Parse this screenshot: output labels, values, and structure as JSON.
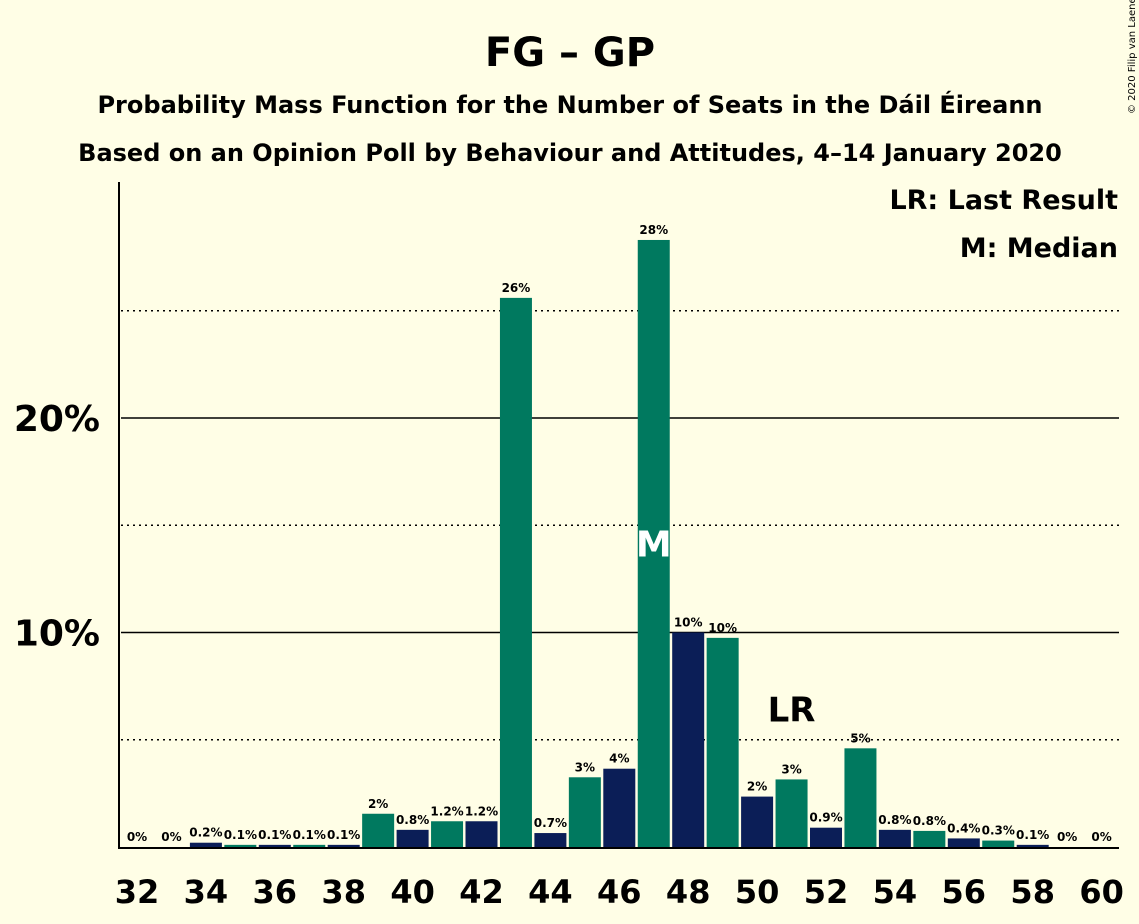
{
  "header": {
    "title": "FG – GP",
    "subtitle1": "Probability Mass Function for the Number of Seats in the Dáil Éireann",
    "subtitle2": "Based on an Opinion Poll by Behaviour and Attitudes, 4–14 January 2020",
    "copyright": "© 2020 Filip van Laenen"
  },
  "legend": {
    "last_result": "LR: Last Result",
    "median": "M: Median"
  },
  "colors": {
    "background": "#FFFEE6",
    "bar_primary": "#00795F",
    "bar_secondary": "#0B1E57",
    "axis": "#000000"
  },
  "chart_data": {
    "type": "bar",
    "x": [
      32,
      33,
      34,
      35,
      36,
      37,
      38,
      39,
      40,
      41,
      42,
      43,
      44,
      45,
      46,
      47,
      48,
      49,
      50,
      51,
      52,
      53,
      54,
      55,
      56,
      57,
      58,
      59,
      60
    ],
    "values": [
      0,
      0,
      0.2,
      0.1,
      0.1,
      0.1,
      0.1,
      1.55,
      0.8,
      1.2,
      1.2,
      25.6,
      0.65,
      3.25,
      3.65,
      28.3,
      10.0,
      9.75,
      2.35,
      3.15,
      0.9,
      4.6,
      0.8,
      0.75,
      0.4,
      0.3,
      0.1,
      0,
      0
    ],
    "labels": [
      "0%",
      "0%",
      "0.2%",
      "0.1%",
      "0.1%",
      "0.1%",
      "0.1%",
      "2%",
      "0.8%",
      "1.2%",
      "1.2%",
      "26%",
      "0.7%",
      "3%",
      "4%",
      "28%",
      "10%",
      "10%",
      "2%",
      "3%",
      "0.9%",
      "5%",
      "0.8%",
      "0.8%",
      "0.4%",
      "0.3%",
      "0.1%",
      "0%",
      "0%"
    ],
    "x_tick_labels": [
      "32",
      "34",
      "36",
      "38",
      "40",
      "42",
      "44",
      "46",
      "48",
      "50",
      "52",
      "54",
      "56",
      "58",
      "60"
    ],
    "y_tick_labels": [
      "10%",
      "20%"
    ],
    "ylim": [
      0,
      30
    ],
    "median_seat": 47,
    "median_marker": "M",
    "last_result_seat": 51,
    "last_result_marker": "LR",
    "grid": "solid at 10% and 20%, dotted at 5%, 15%, 25%"
  }
}
